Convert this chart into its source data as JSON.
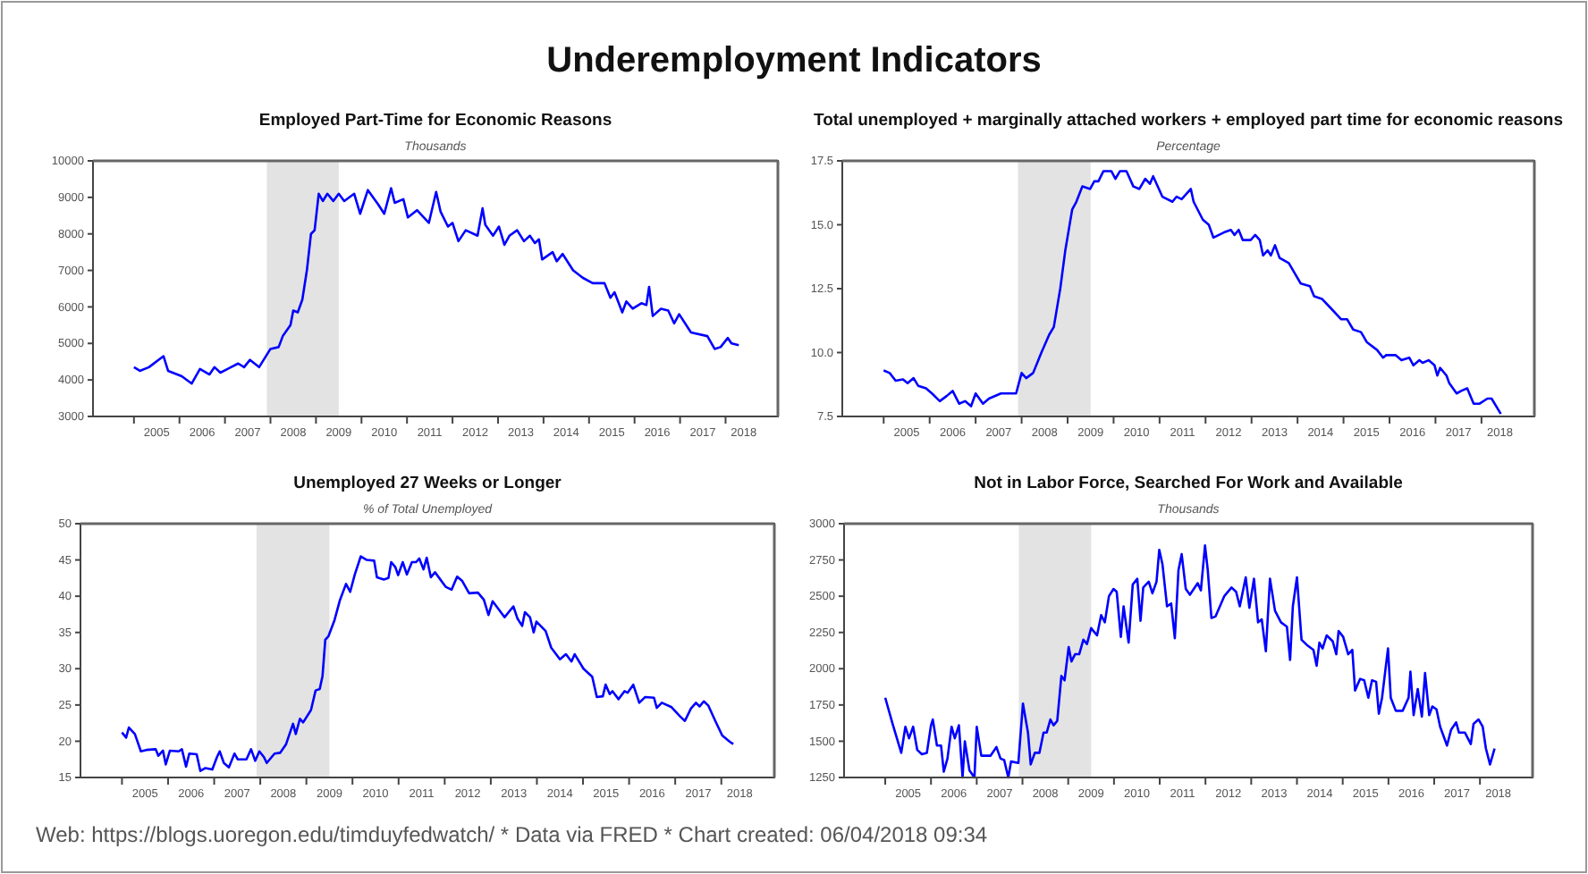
{
  "chart_data": [
    {
      "type": "other",
      "title": "Underemployment Indicators",
      "annotations": [
        "Web: https://blogs.uoregon.edu/timduyfedwatch/ * Data via FRED * Chart created: 06/04/2018 09:34"
      ]
    },
    {
      "type": "line",
      "title": "Employed Part-Time for Economic Reasons",
      "subtitle": "Thousands",
      "xlim": [
        2004.1,
        2019.15
      ],
      "ylim": [
        3000,
        10000
      ],
      "yticks": [
        3000,
        4000,
        5000,
        6000,
        7000,
        8000,
        9000,
        10000
      ],
      "xticks": [
        {
          "value": 2005,
          "label": null
        },
        {
          "value": 2005.5,
          "label": "2005"
        },
        {
          "value": 2006,
          "label": null
        },
        {
          "value": 2006.5,
          "label": "2006"
        },
        {
          "value": 2007,
          "label": null
        },
        {
          "value": 2007.5,
          "label": "2007"
        },
        {
          "value": 2008,
          "label": null
        },
        {
          "value": 2008.5,
          "label": "2008"
        },
        {
          "value": 2009,
          "label": null
        },
        {
          "value": 2009.5,
          "label": "2009"
        },
        {
          "value": 2010,
          "label": null
        },
        {
          "value": 2010.5,
          "label": "2010"
        },
        {
          "value": 2011,
          "label": null
        },
        {
          "value": 2011.5,
          "label": "2011"
        },
        {
          "value": 2012,
          "label": null
        },
        {
          "value": 2012.5,
          "label": "2012"
        },
        {
          "value": 2013,
          "label": null
        },
        {
          "value": 2013.5,
          "label": "2013"
        },
        {
          "value": 2014,
          "label": null
        },
        {
          "value": 2014.5,
          "label": "2014"
        },
        {
          "value": 2015,
          "label": null
        },
        {
          "value": 2015.5,
          "label": "2015"
        },
        {
          "value": 2016,
          "label": null
        },
        {
          "value": 2016.5,
          "label": "2016"
        },
        {
          "value": 2017,
          "label": null
        },
        {
          "value": 2017.5,
          "label": "2017"
        },
        {
          "value": 2018,
          "label": null
        },
        {
          "value": 2018.4,
          "label": "2018"
        }
      ],
      "bands": [
        {
          "axis": "x",
          "from": 2007.92,
          "to": 2009.5,
          "color": "#e3e3e3"
        }
      ],
      "series": [
        {
          "color": "#0000ff",
          "x": [
            2005.0,
            2005.13,
            2005.33,
            2005.65,
            2005.75,
            2006.05,
            2006.27,
            2006.45,
            2006.66,
            2006.77,
            2006.9,
            2007.29,
            2007.42,
            2007.55,
            2007.75,
            2008.0,
            2008.18,
            2008.27,
            2008.44,
            2008.5,
            2008.6,
            2008.7,
            2008.8,
            2008.89,
            2008.97,
            2009.06,
            2009.15,
            2009.25,
            2009.38,
            2009.5,
            2009.62,
            2009.84,
            2009.97,
            2010.14,
            2010.37,
            2010.5,
            2010.65,
            2010.73,
            2010.92,
            2011.02,
            2011.22,
            2011.48,
            2011.64,
            2011.74,
            2011.9,
            2012.0,
            2012.13,
            2012.29,
            2012.55,
            2012.66,
            2012.72,
            2012.89,
            2013.02,
            2013.14,
            2013.25,
            2013.42,
            2013.57,
            2013.7,
            2013.81,
            2013.9,
            2013.97,
            2014.2,
            2014.29,
            2014.42,
            2014.65,
            2014.86,
            2015.08,
            2015.34,
            2015.47,
            2015.56,
            2015.73,
            2015.82,
            2015.96,
            2016.15,
            2016.26,
            2016.32,
            2016.4,
            2016.58,
            2016.74,
            2016.87,
            2016.98,
            2017.24,
            2017.6,
            2017.76,
            2017.89,
            2018.05,
            2018.13,
            2018.29
          ],
          "values": [
            4350,
            4250,
            4350,
            4650,
            4250,
            4100,
            3900,
            4300,
            4150,
            4350,
            4200,
            4450,
            4350,
            4550,
            4350,
            4850,
            4900,
            5200,
            5500,
            5900,
            5850,
            6200,
            7000,
            8000,
            8100,
            9100,
            8900,
            9100,
            8900,
            9100,
            8900,
            9100,
            8550,
            9200,
            8800,
            8550,
            9250,
            8850,
            8950,
            8450,
            8650,
            8300,
            9150,
            8600,
            8200,
            8300,
            7800,
            8100,
            7950,
            8700,
            8250,
            7950,
            8200,
            7700,
            7950,
            8100,
            7800,
            7950,
            7750,
            7850,
            7300,
            7500,
            7250,
            7450,
            7000,
            6800,
            6650,
            6650,
            6250,
            6400,
            5850,
            6150,
            5950,
            6100,
            6050,
            6550,
            5750,
            5950,
            5900,
            5550,
            5800,
            5300,
            5200,
            4850,
            4900,
            5150,
            5000,
            4950
          ]
        }
      ]
    },
    {
      "type": "line",
      "title": "Total unemployed + marginally attached workers + employed part time for economic reasons",
      "subtitle": "Percentage",
      "xlim": [
        2004.1,
        2019.15
      ],
      "ylim": [
        7.5,
        17.5
      ],
      "yticks": [
        7.5,
        {
          "value": 10,
          "label": "10.0"
        },
        12.5,
        {
          "value": 15,
          "label": "15.0"
        },
        17.5
      ],
      "xticks": [
        {
          "value": 2005,
          "label": null
        },
        {
          "value": 2005.5,
          "label": "2005"
        },
        {
          "value": 2006,
          "label": null
        },
        {
          "value": 2006.5,
          "label": "2006"
        },
        {
          "value": 2007,
          "label": null
        },
        {
          "value": 2007.5,
          "label": "2007"
        },
        {
          "value": 2008,
          "label": null
        },
        {
          "value": 2008.5,
          "label": "2008"
        },
        {
          "value": 2009,
          "label": null
        },
        {
          "value": 2009.5,
          "label": "2009"
        },
        {
          "value": 2010,
          "label": null
        },
        {
          "value": 2010.5,
          "label": "2010"
        },
        {
          "value": 2011,
          "label": null
        },
        {
          "value": 2011.5,
          "label": "2011"
        },
        {
          "value": 2012,
          "label": null
        },
        {
          "value": 2012.5,
          "label": "2012"
        },
        {
          "value": 2013,
          "label": null
        },
        {
          "value": 2013.5,
          "label": "2013"
        },
        {
          "value": 2014,
          "label": null
        },
        {
          "value": 2014.5,
          "label": "2014"
        },
        {
          "value": 2015,
          "label": null
        },
        {
          "value": 2015.5,
          "label": "2015"
        },
        {
          "value": 2016,
          "label": null
        },
        {
          "value": 2016.5,
          "label": "2016"
        },
        {
          "value": 2017,
          "label": null
        },
        {
          "value": 2017.5,
          "label": "2017"
        },
        {
          "value": 2018,
          "label": null
        },
        {
          "value": 2018.4,
          "label": "2018"
        }
      ],
      "bands": [
        {
          "axis": "x",
          "from": 2007.92,
          "to": 2009.5,
          "color": "#e3e3e3"
        }
      ],
      "series": [
        {
          "color": "#0000ff",
          "x": [
            2005.0,
            2005.13,
            2005.26,
            2005.42,
            2005.52,
            2005.65,
            2005.75,
            2005.92,
            2006.05,
            2006.22,
            2006.37,
            2006.5,
            2006.64,
            2006.77,
            2006.9,
            2007.0,
            2007.16,
            2007.29,
            2007.55,
            2007.88,
            2008.0,
            2008.1,
            2008.25,
            2008.43,
            2008.6,
            2008.7,
            2008.84,
            2008.95,
            2009.1,
            2009.19,
            2009.32,
            2009.49,
            2009.58,
            2009.67,
            2009.78,
            2009.95,
            2010.04,
            2010.14,
            2010.28,
            2010.43,
            2010.56,
            2010.69,
            2010.79,
            2010.86,
            2011.06,
            2011.28,
            2011.37,
            2011.48,
            2011.58,
            2011.68,
            2011.74,
            2011.94,
            2012.07,
            2012.17,
            2012.4,
            2012.55,
            2012.63,
            2012.72,
            2012.81,
            2012.98,
            2013.08,
            2013.18,
            2013.25,
            2013.35,
            2013.42,
            2013.51,
            2013.61,
            2013.81,
            2013.94,
            2014.07,
            2014.27,
            2014.36,
            2014.53,
            2014.69,
            2014.95,
            2015.08,
            2015.21,
            2015.38,
            2015.51,
            2015.73,
            2015.86,
            2015.93,
            2016.13,
            2016.26,
            2016.43,
            2016.52,
            2016.65,
            2016.72,
            2016.85,
            2016.98,
            2017.04,
            2017.1,
            2017.24,
            2017.3,
            2017.46,
            2017.56,
            2017.69,
            2017.83,
            2017.96,
            2018.13,
            2018.22,
            2018.42
          ],
          "values": [
            9.3,
            9.2,
            8.9,
            8.95,
            8.8,
            9.0,
            8.7,
            8.6,
            8.4,
            8.1,
            8.3,
            8.5,
            8.0,
            8.1,
            7.9,
            8.4,
            8.0,
            8.2,
            8.4,
            8.4,
            9.2,
            9.0,
            9.2,
            10.0,
            10.7,
            11.0,
            12.5,
            14.0,
            15.6,
            15.9,
            16.5,
            16.4,
            16.7,
            16.7,
            17.1,
            17.1,
            16.8,
            17.1,
            17.1,
            16.5,
            16.4,
            16.8,
            16.6,
            16.9,
            16.1,
            15.9,
            16.1,
            16.0,
            16.2,
            16.4,
            15.9,
            15.2,
            15.0,
            14.5,
            14.7,
            14.8,
            14.6,
            14.8,
            14.4,
            14.4,
            14.6,
            14.4,
            13.8,
            14.0,
            13.8,
            14.2,
            13.7,
            13.5,
            13.1,
            12.7,
            12.6,
            12.2,
            12.1,
            11.8,
            11.3,
            11.3,
            10.9,
            10.8,
            10.4,
            10.1,
            9.8,
            9.9,
            9.9,
            9.7,
            9.8,
            9.5,
            9.7,
            9.6,
            9.7,
            9.5,
            9.1,
            9.4,
            9.1,
            8.8,
            8.4,
            8.5,
            8.6,
            8.0,
            8.0,
            8.2,
            8.2,
            7.6
          ]
        }
      ]
    },
    {
      "type": "line",
      "title": "Unemployed 27 Weeks or Longer",
      "subtitle": "% of Total Unemployed",
      "xlim": [
        2004.1,
        2019.15
      ],
      "ylim": [
        15,
        50
      ],
      "yticks": [
        15,
        20,
        25,
        30,
        35,
        40,
        45,
        50
      ],
      "xticks": [
        {
          "value": 2005,
          "label": null
        },
        {
          "value": 2005.5,
          "label": "2005"
        },
        {
          "value": 2006,
          "label": null
        },
        {
          "value": 2006.5,
          "label": "2006"
        },
        {
          "value": 2007,
          "label": null
        },
        {
          "value": 2007.5,
          "label": "2007"
        },
        {
          "value": 2008,
          "label": null
        },
        {
          "value": 2008.5,
          "label": "2008"
        },
        {
          "value": 2009,
          "label": null
        },
        {
          "value": 2009.5,
          "label": "2009"
        },
        {
          "value": 2010,
          "label": null
        },
        {
          "value": 2010.5,
          "label": "2010"
        },
        {
          "value": 2011,
          "label": null
        },
        {
          "value": 2011.5,
          "label": "2011"
        },
        {
          "value": 2012,
          "label": null
        },
        {
          "value": 2012.5,
          "label": "2012"
        },
        {
          "value": 2013,
          "label": null
        },
        {
          "value": 2013.5,
          "label": "2013"
        },
        {
          "value": 2014,
          "label": null
        },
        {
          "value": 2014.5,
          "label": "2014"
        },
        {
          "value": 2015,
          "label": null
        },
        {
          "value": 2015.5,
          "label": "2015"
        },
        {
          "value": 2016,
          "label": null
        },
        {
          "value": 2016.5,
          "label": "2016"
        },
        {
          "value": 2017,
          "label": null
        },
        {
          "value": 2017.5,
          "label": "2017"
        },
        {
          "value": 2018,
          "label": null
        },
        {
          "value": 2018.4,
          "label": "2018"
        }
      ],
      "bands": [
        {
          "axis": "x",
          "from": 2007.92,
          "to": 2009.5,
          "color": "#e3e3e3"
        }
      ],
      "series": [
        {
          "color": "#0000ff",
          "x": [
            2005.0,
            2005.09,
            2005.15,
            2005.28,
            2005.41,
            2005.53,
            2005.73,
            2005.79,
            2005.89,
            2005.95,
            2006.04,
            2006.23,
            2006.3,
            2006.39,
            2006.46,
            2006.62,
            2006.7,
            2006.81,
            2006.96,
            2007.06,
            2007.12,
            2007.21,
            2007.32,
            2007.44,
            2007.51,
            2007.7,
            2007.8,
            2007.89,
            2007.98,
            2008.08,
            2008.14,
            2008.31,
            2008.43,
            2008.56,
            2008.71,
            2008.77,
            2008.86,
            2008.93,
            2009.1,
            2009.2,
            2009.29,
            2009.35,
            2009.41,
            2009.48,
            2009.61,
            2009.73,
            2009.86,
            2009.95,
            2010.05,
            2010.18,
            2010.31,
            2010.47,
            2010.53,
            2010.68,
            2010.78,
            2010.84,
            2010.93,
            2010.99,
            2011.09,
            2011.18,
            2011.29,
            2011.38,
            2011.45,
            2011.54,
            2011.61,
            2011.7,
            2011.79,
            2012.02,
            2012.15,
            2012.27,
            2012.38,
            2012.53,
            2012.72,
            2012.85,
            2012.95,
            2013.04,
            2013.3,
            2013.49,
            2013.58,
            2013.68,
            2013.74,
            2013.85,
            2013.93,
            2013.99,
            2014.19,
            2014.31,
            2014.5,
            2014.63,
            2014.75,
            2014.82,
            2015.01,
            2015.2,
            2015.3,
            2015.43,
            2015.49,
            2015.58,
            2015.64,
            2015.77,
            2015.9,
            2015.97,
            2016.09,
            2016.22,
            2016.35,
            2016.54,
            2016.6,
            2016.71,
            2016.92,
            2017.11,
            2017.21,
            2017.34,
            2017.45,
            2017.53,
            2017.62,
            2017.72,
            2017.87,
            2018.02,
            2018.19,
            2018.26
          ],
          "values": [
            21.2,
            20.5,
            21.9,
            21.0,
            18.6,
            18.8,
            18.9,
            18.0,
            18.7,
            16.8,
            18.7,
            18.6,
            18.9,
            16.5,
            18.3,
            18.2,
            15.9,
            16.3,
            16.1,
            17.8,
            18.6,
            17.0,
            16.4,
            18.3,
            17.5,
            17.5,
            18.9,
            17.3,
            18.6,
            17.8,
            17.0,
            18.3,
            18.4,
            19.6,
            22.4,
            21.0,
            23.1,
            22.6,
            24.3,
            27.0,
            27.2,
            29.0,
            34.0,
            34.5,
            36.7,
            39.5,
            41.7,
            40.6,
            43.0,
            45.5,
            45.0,
            44.9,
            42.6,
            42.3,
            42.5,
            44.7,
            44.0,
            42.9,
            44.7,
            43.0,
            44.7,
            44.7,
            45.2,
            43.7,
            45.3,
            42.6,
            43.3,
            41.3,
            40.9,
            42.7,
            42.1,
            40.4,
            40.5,
            39.5,
            37.4,
            39.3,
            37.1,
            38.6,
            36.9,
            35.9,
            37.8,
            37.1,
            35.0,
            36.5,
            35.2,
            32.9,
            31.3,
            32.0,
            31.0,
            32.0,
            30.0,
            28.9,
            26.1,
            26.2,
            27.8,
            26.5,
            26.9,
            25.8,
            26.9,
            26.7,
            27.8,
            25.3,
            26.1,
            26.0,
            24.6,
            25.3,
            24.7,
            23.4,
            22.8,
            24.5,
            25.3,
            24.8,
            25.5,
            24.9,
            22.8,
            20.8,
            19.9,
            19.6
          ]
        }
      ]
    },
    {
      "type": "line",
      "title": "Not in Labor Force, Searched For Work and Available",
      "subtitle": "Thousands",
      "xlim": [
        2004.1,
        2019.15
      ],
      "ylim": [
        1250,
        3000
      ],
      "yticks": [
        1250,
        1500,
        1750,
        2000,
        2250,
        2500,
        2750,
        3000
      ],
      "xticks": [
        {
          "value": 2005,
          "label": null
        },
        {
          "value": 2005.5,
          "label": "2005"
        },
        {
          "value": 2006,
          "label": null
        },
        {
          "value": 2006.5,
          "label": "2006"
        },
        {
          "value": 2007,
          "label": null
        },
        {
          "value": 2007.5,
          "label": "2007"
        },
        {
          "value": 2008,
          "label": null
        },
        {
          "value": 2008.5,
          "label": "2008"
        },
        {
          "value": 2009,
          "label": null
        },
        {
          "value": 2009.5,
          "label": "2009"
        },
        {
          "value": 2010,
          "label": null
        },
        {
          "value": 2010.5,
          "label": "2010"
        },
        {
          "value": 2011,
          "label": null
        },
        {
          "value": 2011.5,
          "label": "2011"
        },
        {
          "value": 2012,
          "label": null
        },
        {
          "value": 2012.5,
          "label": "2012"
        },
        {
          "value": 2013,
          "label": null
        },
        {
          "value": 2013.5,
          "label": "2013"
        },
        {
          "value": 2014,
          "label": null
        },
        {
          "value": 2014.5,
          "label": "2014"
        },
        {
          "value": 2015,
          "label": null
        },
        {
          "value": 2015.5,
          "label": "2015"
        },
        {
          "value": 2016,
          "label": null
        },
        {
          "value": 2016.5,
          "label": "2016"
        },
        {
          "value": 2017,
          "label": null
        },
        {
          "value": 2017.5,
          "label": "2017"
        },
        {
          "value": 2018,
          "label": null
        },
        {
          "value": 2018.4,
          "label": "2018"
        }
      ],
      "bands": [
        {
          "axis": "x",
          "from": 2007.92,
          "to": 2009.5,
          "color": "#e3e3e3"
        }
      ],
      "series": [
        {
          "color": "#0000ff",
          "x": [
            2005.0,
            2005.16,
            2005.35,
            2005.44,
            2005.52,
            2005.61,
            2005.7,
            2005.8,
            2005.91,
            2006.0,
            2006.04,
            2006.13,
            2006.22,
            2006.28,
            2006.36,
            2006.45,
            2006.52,
            2006.61,
            2006.69,
            2006.74,
            2006.84,
            2006.95,
            2007.0,
            2007.1,
            2007.3,
            2007.43,
            2007.52,
            2007.6,
            2007.69,
            2007.75,
            2007.91,
            2008.01,
            2008.12,
            2008.18,
            2008.27,
            2008.37,
            2008.46,
            2008.53,
            2008.61,
            2008.68,
            2008.76,
            2008.85,
            2008.92,
            2009.01,
            2009.07,
            2009.15,
            2009.24,
            2009.33,
            2009.41,
            2009.5,
            2009.63,
            2009.72,
            2009.8,
            2009.89,
            2009.99,
            2010.06,
            2010.15,
            2010.21,
            2010.32,
            2010.41,
            2010.51,
            2010.58,
            2010.64,
            2010.76,
            2010.84,
            2010.93,
            2010.99,
            2011.06,
            2011.16,
            2011.25,
            2011.33,
            2011.41,
            2011.48,
            2011.57,
            2011.66,
            2011.83,
            2011.9,
            2011.99,
            2012.05,
            2012.13,
            2012.22,
            2012.41,
            2012.57,
            2012.67,
            2012.75,
            2012.88,
            2012.96,
            2013.06,
            2013.15,
            2013.23,
            2013.32,
            2013.41,
            2013.52,
            2013.65,
            2013.78,
            2013.85,
            2013.91,
            2014.0,
            2014.1,
            2014.23,
            2014.36,
            2014.43,
            2014.49,
            2014.56,
            2014.65,
            2014.78,
            2014.86,
            2014.91,
            2015.01,
            2015.12,
            2015.21,
            2015.27,
            2015.38,
            2015.47,
            2015.56,
            2015.64,
            2015.73,
            2015.79,
            2015.86,
            2015.99,
            2016.05,
            2016.16,
            2016.31,
            2016.44,
            2016.48,
            2016.55,
            2016.64,
            2016.73,
            2016.8,
            2016.89,
            2016.96,
            2017.05,
            2017.13,
            2017.28,
            2017.37,
            2017.48,
            2017.54,
            2017.67,
            2017.8,
            2017.86,
            2017.97,
            2018.06,
            2018.13,
            2018.22,
            2018.32
          ],
          "values": [
            1800,
            1620,
            1420,
            1600,
            1520,
            1600,
            1440,
            1410,
            1420,
            1610,
            1650,
            1470,
            1470,
            1290,
            1380,
            1600,
            1520,
            1610,
            1250,
            1500,
            1300,
            1250,
            1600,
            1400,
            1400,
            1460,
            1380,
            1370,
            1250,
            1360,
            1350,
            1760,
            1560,
            1340,
            1420,
            1420,
            1560,
            1560,
            1650,
            1610,
            1640,
            1950,
            1920,
            2150,
            2050,
            2100,
            2100,
            2200,
            2170,
            2280,
            2230,
            2370,
            2320,
            2500,
            2550,
            2530,
            2220,
            2430,
            2180,
            2580,
            2620,
            2330,
            2560,
            2600,
            2520,
            2600,
            2820,
            2720,
            2430,
            2450,
            2210,
            2680,
            2790,
            2550,
            2510,
            2590,
            2540,
            2850,
            2680,
            2350,
            2360,
            2500,
            2560,
            2530,
            2430,
            2630,
            2420,
            2620,
            2320,
            2340,
            2120,
            2620,
            2400,
            2320,
            2290,
            2060,
            2430,
            2630,
            2200,
            2160,
            2130,
            2020,
            2180,
            2140,
            2230,
            2190,
            2100,
            2260,
            2220,
            2100,
            2130,
            1850,
            1930,
            1920,
            1800,
            1920,
            1910,
            1690,
            1800,
            2140,
            1800,
            1710,
            1710,
            1800,
            1980,
            1680,
            1860,
            1670,
            1970,
            1680,
            1740,
            1720,
            1600,
            1470,
            1580,
            1630,
            1560,
            1560,
            1480,
            1620,
            1650,
            1600,
            1450,
            1340,
            1450
          ]
        }
      ]
    }
  ]
}
